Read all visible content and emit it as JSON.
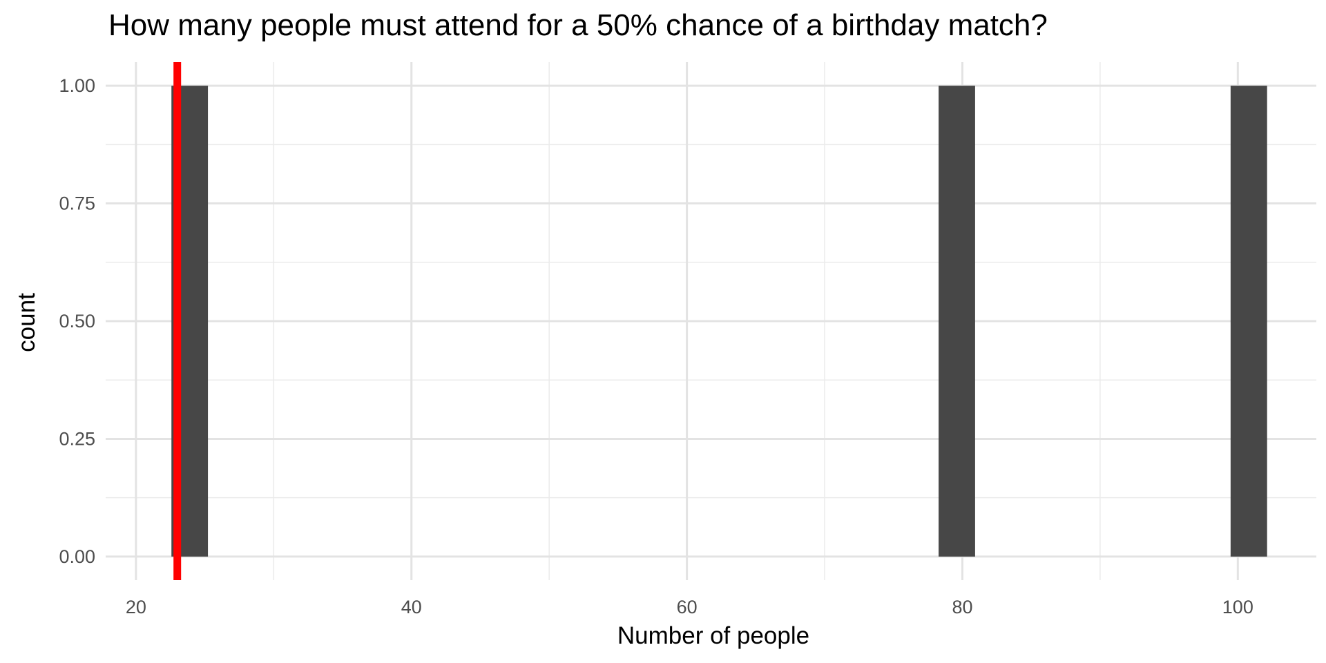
{
  "chart_data": {
    "type": "bar",
    "title": "How many people must attend for a 50% chance of a birthday match?",
    "xlabel": "Number of people",
    "ylabel": "count",
    "xlim": [
      17.8,
      105.7
    ],
    "ylim": [
      -0.05,
      1.05
    ],
    "x_ticks": [
      20,
      40,
      60,
      80,
      100
    ],
    "x_tick_labels": [
      "20",
      "40",
      "60",
      "80",
      "100"
    ],
    "y_ticks": [
      0,
      0.25,
      0.5,
      0.75,
      1.0
    ],
    "y_tick_labels": [
      "0.00",
      "0.25",
      "0.50",
      "0.75",
      "1.00"
    ],
    "bin_width": 2.65,
    "bars": [
      {
        "x": 23.9,
        "count": 1
      },
      {
        "x": 79.6,
        "count": 1
      },
      {
        "x": 100.8,
        "count": 1
      }
    ],
    "reference_line": {
      "x": 23,
      "color": "#ff0000"
    },
    "bar_color": "#474747",
    "grid": true
  }
}
